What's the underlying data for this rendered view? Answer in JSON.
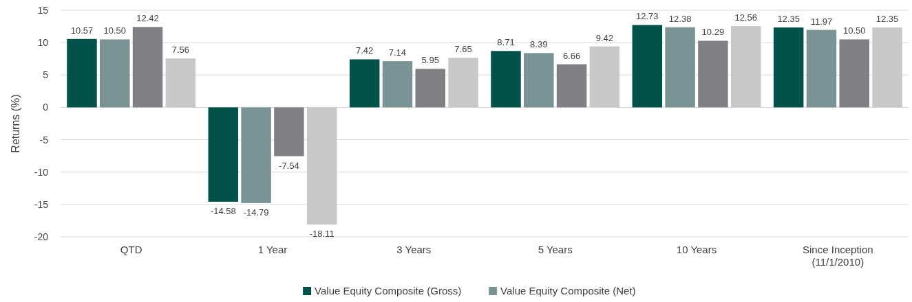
{
  "chart_data": {
    "type": "bar",
    "ylabel": "Returns (%)",
    "categories": [
      "QTD",
      "1 Year",
      "3 Years",
      "5 Years",
      "10 Years",
      "Since Inception (11/1/2010)"
    ],
    "series": [
      {
        "name": "Value Equity Composite (Gross)",
        "color": "#00524a",
        "values": [
          10.57,
          -14.58,
          7.42,
          8.71,
          12.73,
          12.35
        ],
        "value_labels": [
          "10.57",
          "-14.58",
          "7.42",
          "8.71",
          "12.73",
          "12.35"
        ]
      },
      {
        "name": "Value Equity Composite (Net)",
        "color": "#7a9394",
        "values": [
          10.5,
          -14.79,
          7.14,
          8.39,
          12.38,
          11.97
        ],
        "value_labels": [
          "10.50",
          "-14.79",
          "7.14",
          "8.39",
          "12.38",
          "11.97"
        ]
      },
      {
        "color": "#807f83",
        "values": [
          12.42,
          -7.54,
          5.95,
          6.66,
          10.29,
          10.5
        ],
        "value_labels": [
          "12.42",
          "-7.54",
          "5.95",
          "6.66",
          "10.29",
          "10.50"
        ]
      },
      {
        "color": "#c8c8c8",
        "values": [
          7.56,
          -18.11,
          7.65,
          9.42,
          12.56,
          12.35
        ],
        "value_labels": [
          "7.56",
          "-18.11",
          "7.65",
          "9.42",
          "12.56",
          "12.35"
        ]
      }
    ],
    "ylim": [
      -20,
      15
    ],
    "yticks": [
      -20,
      -15,
      -10,
      -5,
      0,
      5,
      10,
      15
    ],
    "grid": "y",
    "legend": "bottom"
  }
}
